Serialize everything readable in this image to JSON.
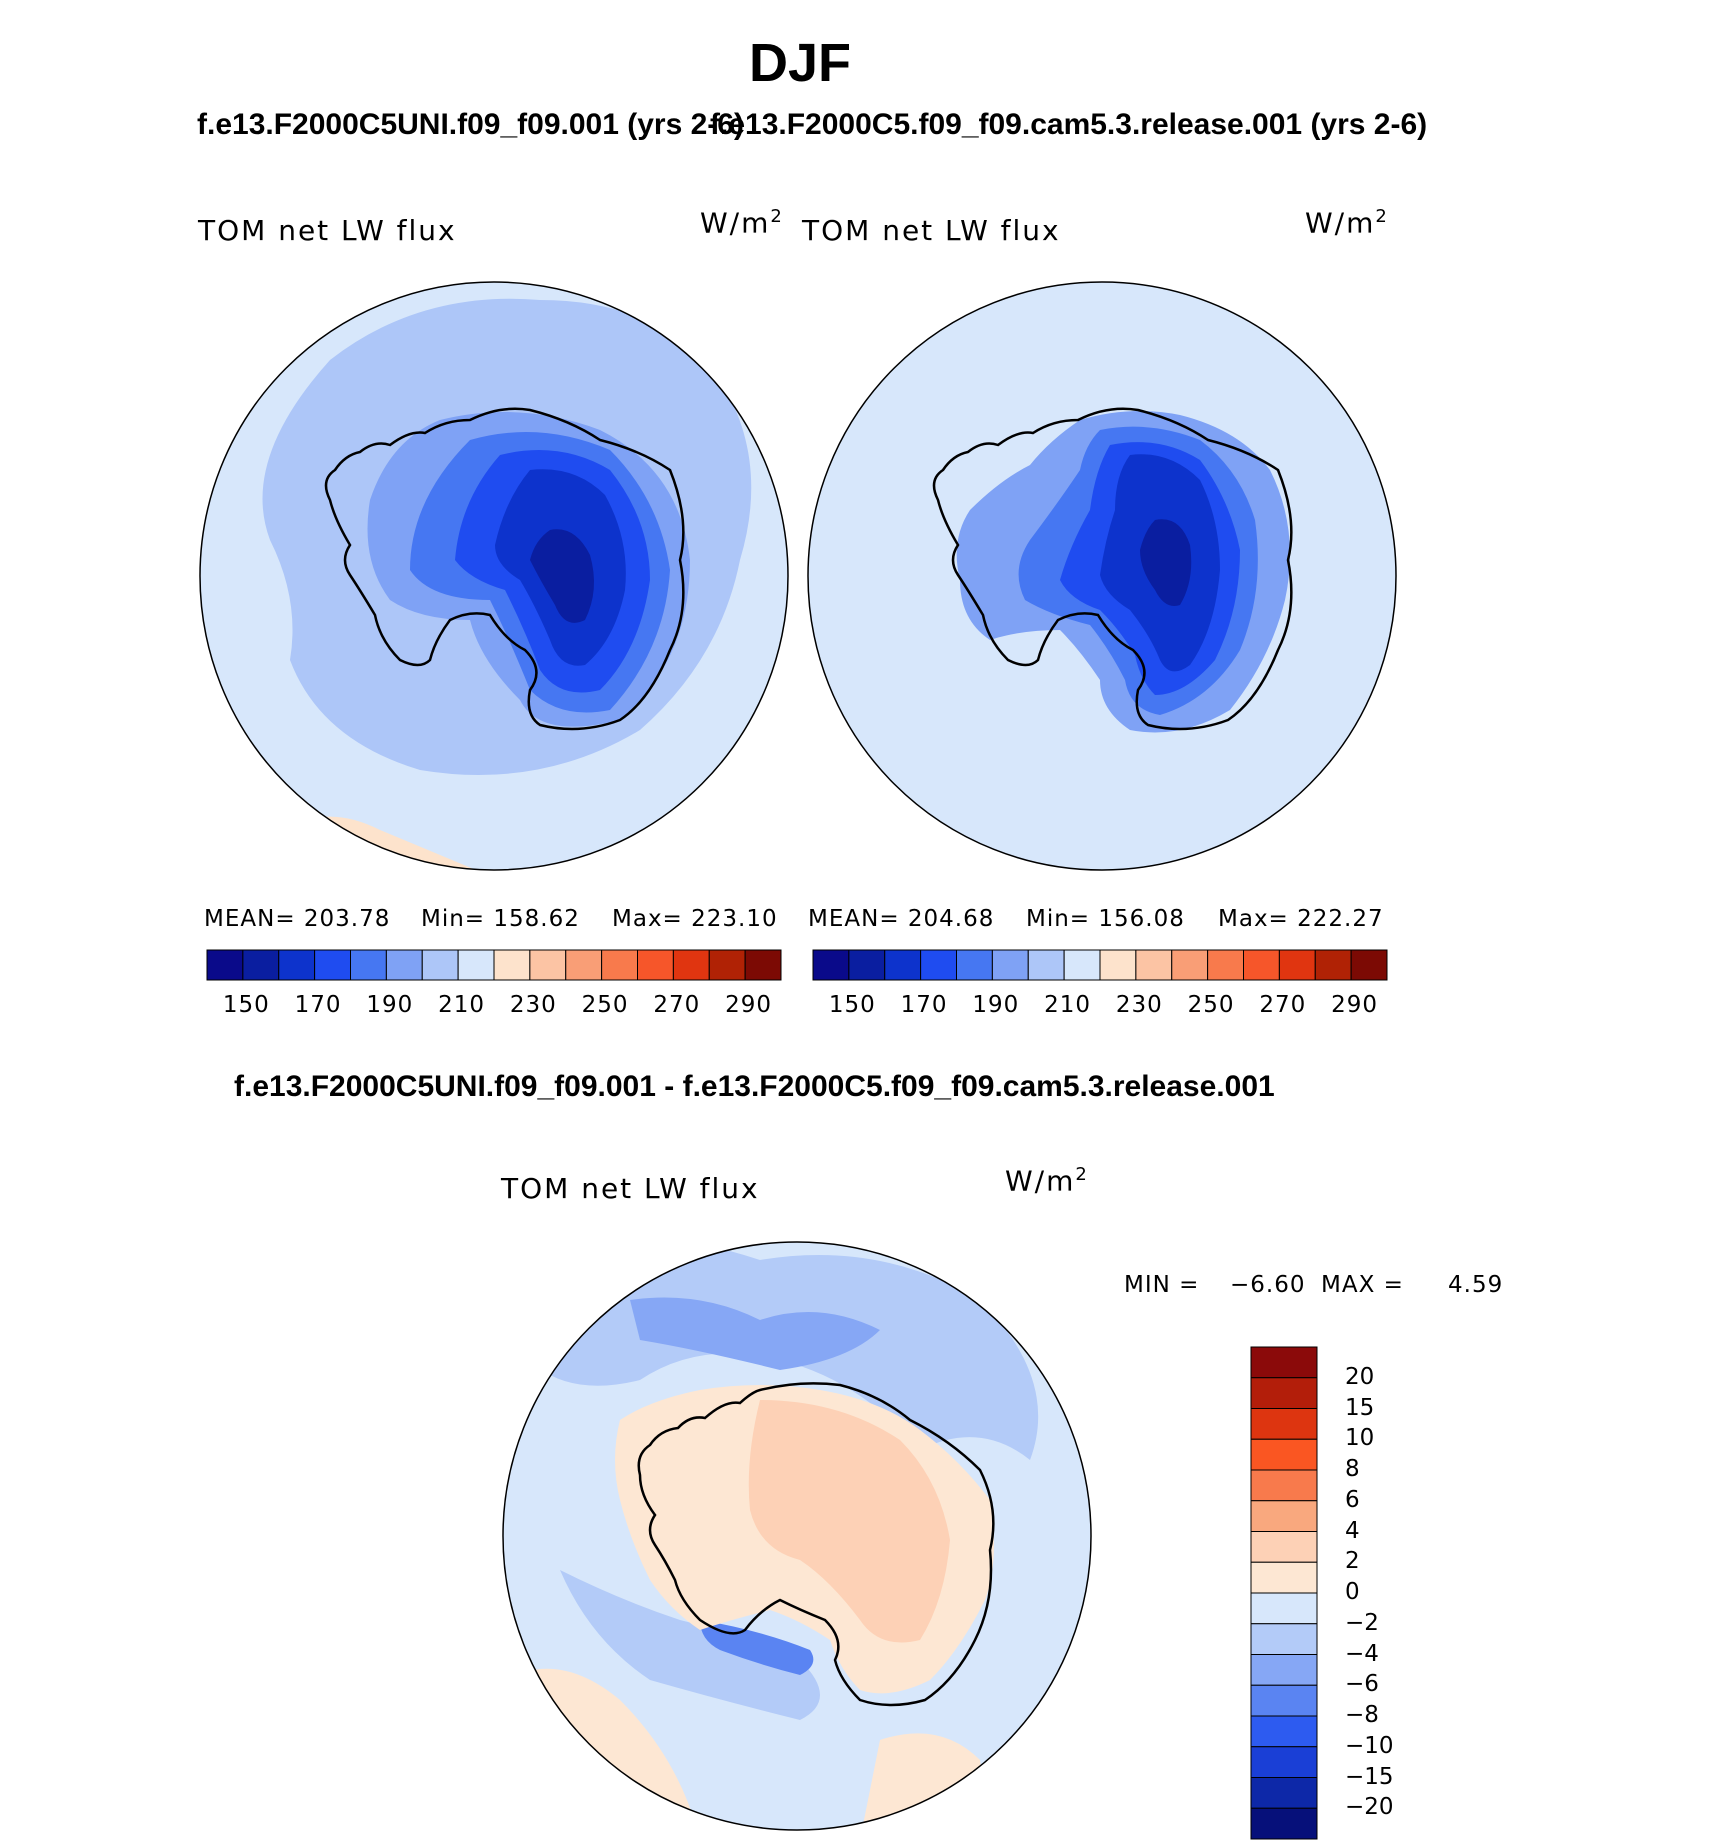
{
  "title": "DJF",
  "panels": [
    {
      "case_title": "f.e13.F2000C5UNI.f09_f09.001 (yrs 2-6)",
      "variable": "TOM net LW flux",
      "units_base": "W/m",
      "units_exp": "2",
      "stats": {
        "mean": "MEAN= 203.78",
        "min": "Min= 158.62",
        "max": "Max= 223.10"
      }
    },
    {
      "case_title": "f.e13.F2000C5.f09_f09.cam5.3.release.001 (yrs 2-6)",
      "variable": "TOM net LW flux",
      "units_base": "W/m",
      "units_exp": "2",
      "stats": {
        "mean": "MEAN= 204.68",
        "min": "Min= 156.08",
        "max": "Max= 222.27"
      }
    }
  ],
  "colorbar": {
    "colors": [
      "#0a0a8a",
      "#0a1ea0",
      "#0d33cc",
      "#1f4cf0",
      "#4677f2",
      "#7fa2f5",
      "#adc6f8",
      "#d7e7fb",
      "#fde3cc",
      "#fcc4a4",
      "#f99e76",
      "#f87a4c",
      "#f6562a",
      "#e03510",
      "#b02205",
      "#7c0a04"
    ],
    "labels": [
      "150",
      "170",
      "190",
      "210",
      "230",
      "250",
      "270",
      "290"
    ]
  },
  "difference": {
    "title": "f.e13.F2000C5UNI.f09_f09.001 - f.e13.F2000C5.f09_f09.cam5.3.release.001",
    "variable": "TOM net LW flux",
    "units_base": "W/m",
    "units_exp": "2",
    "min_label": "MIN =",
    "min_value": "−6.60",
    "max_label": "MAX =",
    "max_value": "4.59",
    "colorbar": {
      "colors": [
        "#8b0a0a",
        "#b31e0a",
        "#dd3510",
        "#fa5622",
        "#f87a4c",
        "#f9a87e",
        "#fdd1b6",
        "#fde7d3",
        "#d7e7fb",
        "#b3cbf8",
        "#86a7f5",
        "#5a84f2",
        "#2d5bf0",
        "#1a3fd6",
        "#0d28a8",
        "#06107a"
      ],
      "labels": [
        "20",
        "15",
        "10",
        "8",
        "6",
        "4",
        "2",
        "0",
        "−2",
        "−4",
        "−6",
        "−8",
        "−10",
        "−15",
        "−20"
      ]
    }
  }
}
